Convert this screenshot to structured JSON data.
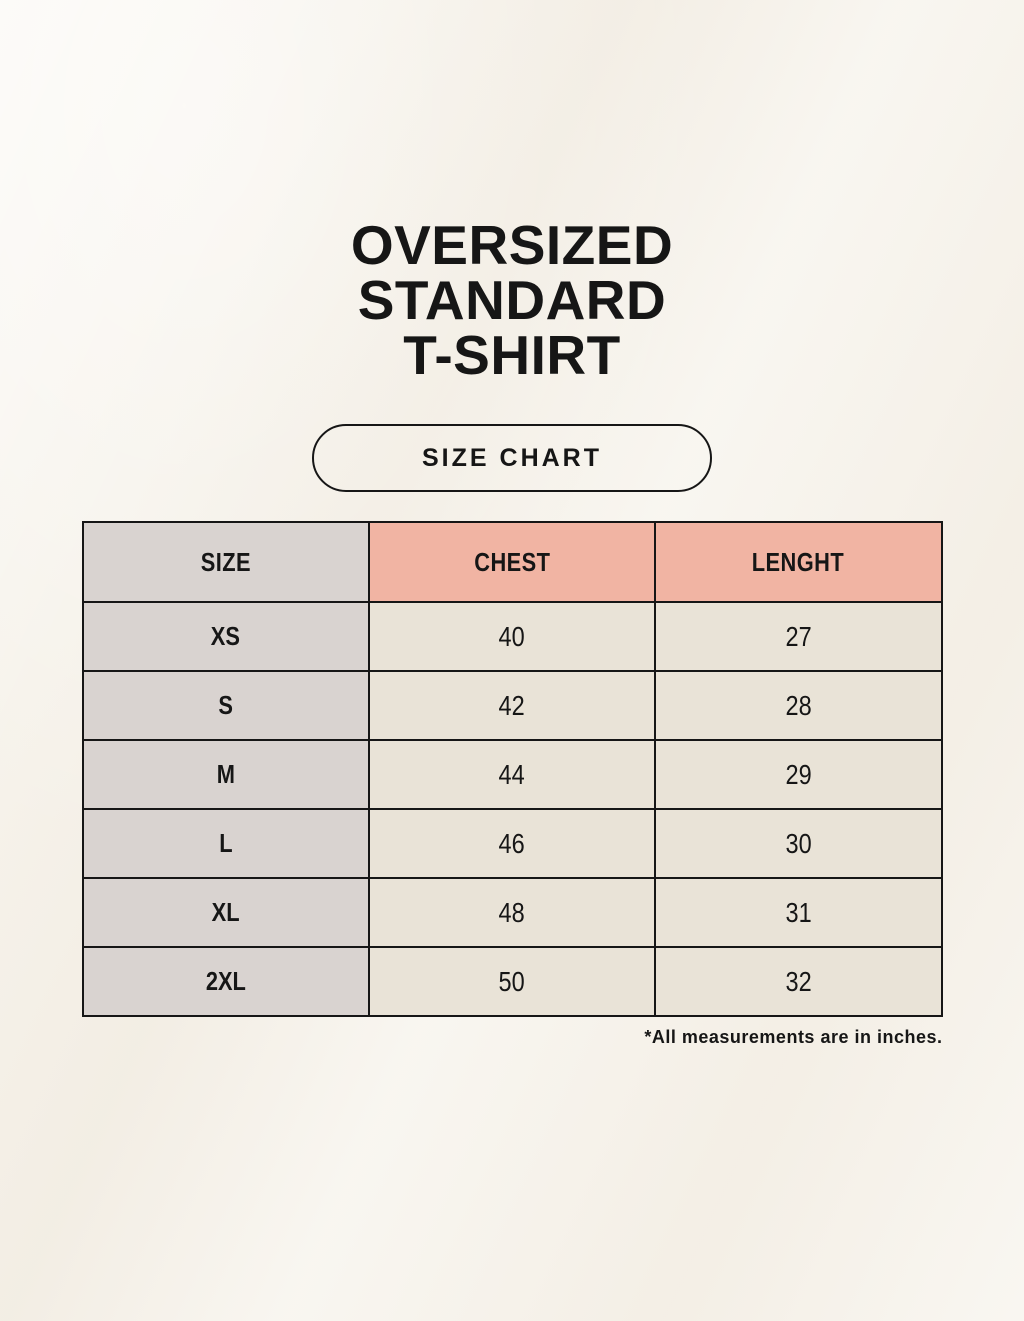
{
  "poster": {
    "title_lines": [
      "OVERSIZED",
      "STANDARD",
      "T-SHIRT"
    ],
    "badge_label": "SIZE CHART",
    "footnote": "*All measurements are in inches."
  },
  "size_table": {
    "columns": [
      "SIZE",
      "CHEST",
      "LENGHT"
    ],
    "rows": [
      {
        "size": "XS",
        "chest": "40",
        "length": "27"
      },
      {
        "size": "S",
        "chest": "42",
        "length": "28"
      },
      {
        "size": "M",
        "chest": "44",
        "length": "29"
      },
      {
        "size": "L",
        "chest": "46",
        "length": "30"
      },
      {
        "size": "XL",
        "chest": "48",
        "length": "31"
      },
      {
        "size": "2XL",
        "chest": "50",
        "length": "32"
      }
    ]
  },
  "chart_data": {
    "type": "table",
    "title": "OVERSIZED STANDARD T-SHIRT — SIZE CHART",
    "columns": [
      "SIZE",
      "CHEST",
      "LENGHT"
    ],
    "rows": [
      [
        "XS",
        40,
        27
      ],
      [
        "S",
        42,
        28
      ],
      [
        "M",
        44,
        29
      ],
      [
        "L",
        46,
        30
      ],
      [
        "XL",
        48,
        31
      ],
      [
        "2XL",
        50,
        32
      ]
    ],
    "units_note": "*All measurements are in inches."
  },
  "colors": {
    "page_background": "#f6f2ea",
    "size_column_bg": "#d9d3d0",
    "measure_header_bg": "#f1b4a3",
    "value_cell_bg": "#e9e3d7",
    "border": "#161616",
    "text": "#161616"
  }
}
